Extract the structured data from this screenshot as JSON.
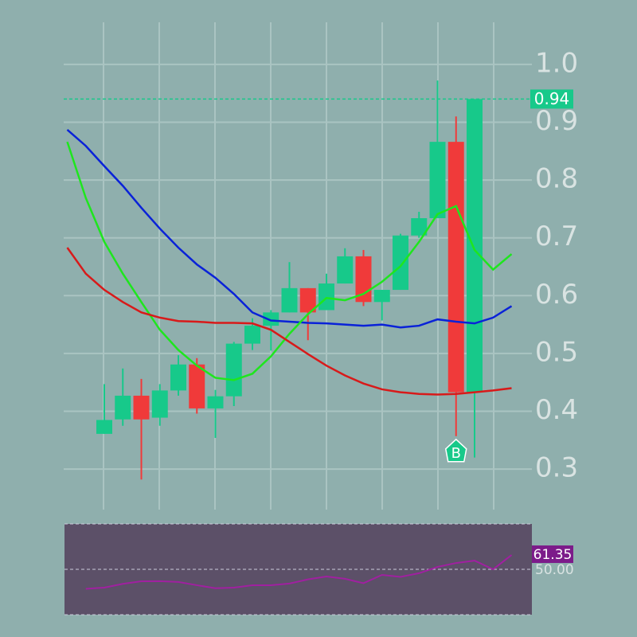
{
  "chart_data": [
    {
      "type": "candlestick",
      "categories": [
        null,
        null,
        null,
        null,
        null,
        null,
        null,
        null,
        null,
        null,
        null,
        null,
        null,
        null,
        null,
        null,
        null,
        null,
        null,
        null,
        null,
        null,
        null,
        null,
        null
      ],
      "ohlc": {
        "open": [
          null,
          null,
          0.361,
          0.386,
          0.427,
          0.389,
          0.436,
          0.481,
          0.405,
          0.426,
          0.517,
          0.548,
          0.571,
          0.613,
          0.575,
          0.621,
          0.668,
          0.589,
          0.61,
          0.704,
          0.734,
          0.866,
          0.433,
          null,
          null
        ],
        "high": [
          null,
          null,
          0.447,
          0.474,
          0.456,
          0.447,
          0.497,
          0.492,
          0.437,
          0.52,
          0.561,
          0.575,
          0.658,
          0.613,
          0.638,
          0.682,
          0.679,
          0.61,
          0.707,
          0.745,
          0.972,
          0.91,
          0.94,
          null,
          null
        ],
        "low": [
          null,
          null,
          0.361,
          0.375,
          0.282,
          0.375,
          0.427,
          0.396,
          0.354,
          0.409,
          0.506,
          0.505,
          0.571,
          0.523,
          0.575,
          0.621,
          0.582,
          0.557,
          0.61,
          0.7,
          0.734,
          0.357,
          0.32,
          null,
          null
        ],
        "close": [
          null,
          null,
          0.385,
          0.427,
          0.386,
          0.436,
          0.481,
          0.405,
          0.426,
          0.517,
          0.548,
          0.571,
          0.613,
          0.571,
          0.621,
          0.668,
          0.589,
          0.61,
          0.704,
          0.734,
          0.866,
          0.433,
          0.94,
          null,
          null
        ],
        "up_color": "#17c98a",
        "down_color": "#f03a3a"
      },
      "series": [
        {
          "color": "#0a22d8",
          "values": [
            0.887,
            0.859,
            0.824,
            0.79,
            0.752,
            0.716,
            0.683,
            0.654,
            0.631,
            0.603,
            0.571,
            0.557,
            0.555,
            0.553,
            0.552,
            0.55,
            0.548,
            0.55,
            0.545,
            0.548,
            0.559,
            0.555,
            0.552,
            0.562,
            0.582
          ]
        },
        {
          "color": "#1ee61e",
          "values": [
            0.866,
            0.769,
            0.693,
            0.638,
            0.589,
            0.541,
            0.506,
            0.479,
            0.458,
            0.454,
            0.465,
            0.495,
            0.534,
            0.568,
            0.596,
            0.592,
            0.603,
            0.624,
            0.651,
            0.693,
            0.741,
            0.755,
            0.679,
            0.645,
            0.672
          ]
        },
        {
          "color": "#d81a1a",
          "values": [
            0.683,
            0.638,
            0.61,
            0.589,
            0.571,
            0.562,
            0.556,
            0.555,
            0.553,
            0.553,
            0.552,
            0.541,
            0.52,
            0.499,
            0.479,
            0.462,
            0.448,
            0.438,
            0.433,
            0.43,
            0.429,
            0.43,
            0.433,
            0.436,
            0.44
          ]
        }
      ],
      "signal_label": "B",
      "ylim": [
        0.23,
        1.07
      ],
      "yticks": [
        0.3,
        0.4,
        0.5,
        0.6,
        0.7,
        0.8,
        0.9,
        {
          "value": 1,
          "label": "1.0"
        }
      ],
      "grid": true
    },
    {
      "type": "line",
      "categories": [
        null,
        null,
        null,
        null,
        null,
        null,
        null,
        null,
        null,
        null,
        null,
        null,
        null,
        null,
        null,
        null,
        null,
        null,
        null,
        null,
        null,
        null,
        null,
        null,
        null
      ],
      "series": [
        {
          "color": "#a020a0",
          "values": [
            null,
            34.5,
            35.5,
            38.5,
            40.5,
            40.6,
            40,
            37.4,
            35,
            35.5,
            37.4,
            37.4,
            38.7,
            42,
            44.3,
            42.5,
            39,
            45.6,
            44,
            46.9,
            51.9,
            55,
            56.9,
            50,
            61.35
          ]
        }
      ],
      "ylim": [
        14,
        86
      ],
      "yticks": [
        {
          "value": 50,
          "label": "50.00"
        }
      ]
    }
  ]
}
